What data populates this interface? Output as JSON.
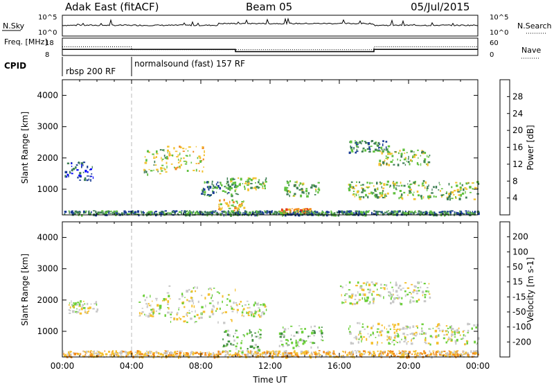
{
  "header": {
    "title": "Adak East (fitACF)",
    "beam": "Beam 05",
    "date": "05/Jul/2015"
  },
  "chart_data": [
    {
      "type": "line",
      "name": "noise-panel",
      "left_label": "N.Sky",
      "right_label": "N.Search",
      "left_ticks": [
        "10^5",
        "10^0"
      ],
      "right_ticks": [
        "10^5",
        "10^0"
      ],
      "x": [
        0,
        24
      ],
      "note_values": "noise level trace roughly constant near 10^0.5 with spikes"
    },
    {
      "type": "line",
      "name": "frequency-panel",
      "left_label": "Freq. [MHz]",
      "right_label": "Nave",
      "left_ticks": [
        "18",
        "8"
      ],
      "right_ticks": [
        "60",
        "0"
      ],
      "freq_series": {
        "x": [
          0,
          10,
          10,
          18,
          18,
          24
        ],
        "y": [
          11.5,
          11.5,
          10.2,
          10.2,
          11.5,
          11.5
        ]
      },
      "nave_series": {
        "x": [
          0,
          4,
          4,
          18,
          18,
          24
        ],
        "y": [
          30,
          30,
          20,
          20,
          30,
          30
        ]
      }
    },
    {
      "type": "table",
      "name": "cpid-panel",
      "label": "CPID",
      "segments": [
        {
          "start": 0,
          "label": "rbsp 200 RF"
        },
        {
          "start": 4,
          "label": "normalsound (fast) 157 RF"
        }
      ]
    },
    {
      "type": "heatmap",
      "name": "power-panel",
      "ylabel": "Slant Range [km]",
      "yticks": [
        1000,
        2000,
        3000,
        4000
      ],
      "ylim": [
        180,
        4500
      ],
      "xlim": [
        0,
        24
      ],
      "colorbar_label": "Power [dB]",
      "colorbar_ticks": [
        "4",
        "8",
        "12",
        "16",
        "20",
        "24",
        "28"
      ],
      "colorbar_colors": [
        "#0000ff",
        "#1c3e96",
        "#3f7f55",
        "#60c040",
        "#f2c230",
        "#f08a1c",
        "#e23a1c",
        "#ff0000"
      ],
      "echo_regions": [
        {
          "t0": 0.1,
          "t1": 1.8,
          "r0": 1300,
          "r1": 1900,
          "level": 1
        },
        {
          "t0": 4.6,
          "t1": 6.0,
          "r0": 1500,
          "r1": 2300,
          "level": 3
        },
        {
          "t0": 6.0,
          "t1": 8.2,
          "r0": 1600,
          "r1": 2400,
          "level": 4
        },
        {
          "t0": 8.0,
          "t1": 10.2,
          "r0": 800,
          "r1": 1300,
          "level": 2
        },
        {
          "t0": 9.0,
          "t1": 10.5,
          "r0": 300,
          "r1": 700,
          "level": 4
        },
        {
          "t0": 9.5,
          "t1": 11.8,
          "r0": 1000,
          "r1": 1400,
          "level": 3
        },
        {
          "t0": 12.8,
          "t1": 14.8,
          "r0": 800,
          "r1": 1300,
          "level": 3
        },
        {
          "t0": 12.5,
          "t1": 14.5,
          "r0": 250,
          "r1": 400,
          "level": 5
        },
        {
          "t0": 16.5,
          "t1": 18.8,
          "r0": 2200,
          "r1": 2600,
          "level": 2
        },
        {
          "t0": 18.2,
          "t1": 21.2,
          "r0": 1800,
          "r1": 2300,
          "level": 3
        },
        {
          "t0": 16.5,
          "t1": 24.0,
          "r0": 700,
          "r1": 1300,
          "level": 3
        },
        {
          "t0": 0.0,
          "t1": 24.0,
          "r0": 200,
          "r1": 330,
          "level": 2
        }
      ]
    },
    {
      "type": "heatmap",
      "name": "velocity-panel",
      "ylabel": "Slant Range [km]",
      "xlabel": "Time UT",
      "yticks": [
        1000,
        2000,
        3000,
        4000
      ],
      "ylim": [
        180,
        4500
      ],
      "xlim": [
        0,
        24
      ],
      "xticks": [
        "00:00",
        "04:00",
        "08:00",
        "12:00",
        "16:00",
        "20:00",
        "00:00"
      ],
      "colorbar_label": "Velocity [m s-1]",
      "colorbar_ticks": [
        "200",
        "100",
        "50",
        "15",
        "-15",
        "-50",
        "-100",
        "-200"
      ],
      "colorbar_colors": [
        "#1a2ad0",
        "#2a5ab0",
        "#3f8f3f",
        "#6ccf3a",
        "#c8c8c8",
        "#f4c030",
        "#f08a1c",
        "#e83a1c",
        "#ff0000"
      ],
      "echo_regions": [
        {
          "t0": 0.3,
          "t1": 2.0,
          "r0": 1600,
          "r1": 2000,
          "level": 4
        },
        {
          "t0": 4.4,
          "t1": 6.0,
          "r0": 1500,
          "r1": 2200,
          "level": 4
        },
        {
          "t0": 6.0,
          "t1": 10.0,
          "r0": 1300,
          "r1": 2500,
          "level": 4
        },
        {
          "t0": 10.0,
          "t1": 11.8,
          "r0": 1500,
          "r1": 2000,
          "level": 4
        },
        {
          "t0": 9.2,
          "t1": 11.5,
          "r0": 300,
          "r1": 1100,
          "level": 3
        },
        {
          "t0": 12.5,
          "t1": 15.0,
          "r0": 500,
          "r1": 1200,
          "level": 3
        },
        {
          "t0": 16.0,
          "t1": 21.2,
          "r0": 1900,
          "r1": 2600,
          "level": 4
        },
        {
          "t0": 16.5,
          "t1": 24.0,
          "r0": 600,
          "r1": 1300,
          "level": 4
        },
        {
          "t0": 0.0,
          "t1": 24.0,
          "r0": 200,
          "r1": 400,
          "level": 5
        }
      ]
    }
  ]
}
